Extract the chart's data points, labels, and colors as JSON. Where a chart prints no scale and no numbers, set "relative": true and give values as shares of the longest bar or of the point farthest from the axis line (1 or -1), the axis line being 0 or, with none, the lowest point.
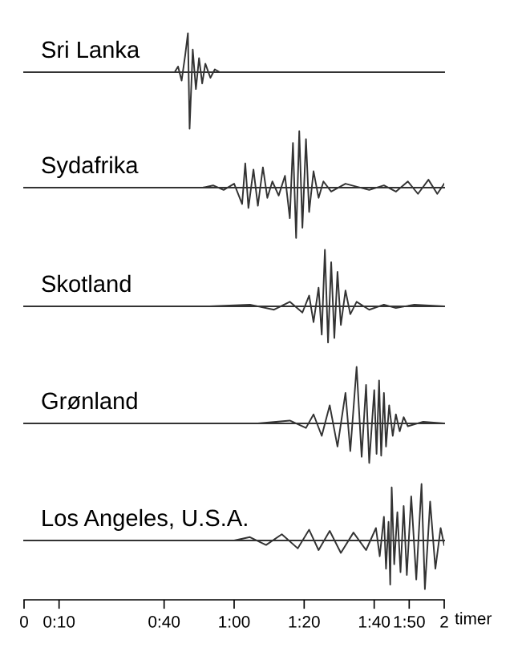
{
  "chart_data": [
    {
      "type": "line",
      "title": "Sri Lanka",
      "relative": true,
      "color": "#333333",
      "xlim": [
        0,
        2
      ],
      "tick_labels": false,
      "x": [
        0,
        0.717,
        0.733,
        0.75,
        0.767,
        0.78,
        0.788,
        0.803,
        0.818,
        0.833,
        0.848,
        0.863,
        0.887,
        0.908,
        0.932,
        2
      ],
      "values": [
        0,
        0,
        0.1,
        -0.15,
        0.3,
        0.69,
        -1,
        0.4,
        -0.3,
        0.25,
        -0.2,
        0.15,
        -0.1,
        0.05,
        0,
        0
      ]
    },
    {
      "type": "line",
      "title": "Sydafrika",
      "relative": true,
      "color": "#333333",
      "xlim": [
        0,
        2
      ],
      "tick_labels": false,
      "x": [
        0,
        0.85,
        0.9,
        0.95,
        1,
        1.038,
        1.053,
        1.068,
        1.092,
        1.113,
        1.137,
        1.158,
        1.182,
        1.212,
        1.242,
        1.265,
        1.28,
        1.295,
        1.31,
        1.325,
        1.342,
        1.357,
        1.378,
        1.402,
        1.425,
        1.462,
        1.53,
        1.643,
        1.713,
        1.77,
        1.827,
        1.875,
        1.925,
        1.967,
        2
      ],
      "values": [
        0,
        0,
        0.04,
        -0.04,
        0.07,
        -0.29,
        0.43,
        -0.36,
        0.32,
        -0.32,
        0.36,
        -0.18,
        0.11,
        -0.14,
        0.21,
        -0.54,
        0.79,
        -0.89,
        1,
        -0.71,
        0.86,
        -0.43,
        0.29,
        -0.18,
        0.11,
        -0.07,
        0.07,
        -0.04,
        0.04,
        -0.07,
        0.11,
        -0.11,
        0.14,
        -0.11,
        0.07
      ]
    },
    {
      "type": "line",
      "title": "Skotland",
      "relative": true,
      "color": "#333333",
      "xlim": [
        0,
        2
      ],
      "tick_labels": false,
      "x": [
        0,
        0.883,
        1.075,
        1.19,
        1.265,
        1.325,
        1.357,
        1.378,
        1.402,
        1.417,
        1.432,
        1.447,
        1.462,
        1.477,
        1.492,
        1.508,
        1.53,
        1.553,
        1.583,
        1.643,
        1.713,
        1.77,
        1.858,
        2
      ],
      "values": [
        0,
        0,
        0.03,
        -0.06,
        0.08,
        -0.11,
        0.19,
        -0.28,
        0.33,
        -0.5,
        1,
        -0.64,
        0.78,
        -0.56,
        0.61,
        -0.33,
        0.28,
        -0.14,
        0.08,
        -0.06,
        0.03,
        -0.03,
        0.03,
        0
      ]
    },
    {
      "type": "line",
      "title": "Grønland",
      "relative": true,
      "color": "#333333",
      "xlim": [
        0,
        2
      ],
      "tick_labels": false,
      "x": [
        0,
        1.113,
        1.265,
        1.342,
        1.378,
        1.417,
        1.455,
        1.492,
        1.53,
        1.553,
        1.583,
        1.607,
        1.628,
        1.643,
        1.667,
        1.678,
        1.69,
        1.7,
        1.713,
        1.723,
        1.738,
        1.755,
        1.77,
        1.788,
        1.807,
        1.827,
        1.9,
        2
      ],
      "values": [
        0,
        0,
        0.05,
        -0.08,
        0.16,
        -0.22,
        0.32,
        -0.41,
        0.54,
        -0.49,
        1,
        -0.59,
        0.68,
        -0.7,
        0.59,
        -0.54,
        0.76,
        -0.57,
        0.54,
        -0.41,
        0.32,
        -0.22,
        0.16,
        -0.14,
        0.11,
        -0.05,
        0.03,
        0
      ]
    },
    {
      "type": "line",
      "title": "Los Angeles, U.S.A.",
      "relative": true,
      "color": "#333333",
      "xlim": [
        0,
        2
      ],
      "tick_labels": "x",
      "xlabel": "timer",
      "xticks": [
        0,
        {
          "value": 0.1667,
          "label": "0:10"
        },
        {
          "value": 0.6667,
          "label": "0:40"
        },
        {
          "value": 1,
          "label": "1:00"
        },
        {
          "value": 1.3333,
          "label": "1:20"
        },
        {
          "value": 1.6667,
          "label": "1:40"
        },
        {
          "value": 1.8333,
          "label": "1:50"
        },
        2
      ],
      "x": [
        0,
        1,
        1.075,
        1.152,
        1.227,
        1.303,
        1.357,
        1.402,
        1.455,
        1.508,
        1.568,
        1.628,
        1.675,
        1.693,
        1.713,
        1.723,
        1.735,
        1.743,
        1.75,
        1.762,
        1.777,
        1.792,
        1.807,
        1.822,
        1.843,
        1.867,
        1.892,
        1.908,
        1.933,
        1.958,
        1.983,
        2
      ],
      "values": [
        0,
        0,
        0.06,
        -0.08,
        0.11,
        -0.14,
        0.19,
        -0.17,
        0.17,
        -0.22,
        0.14,
        -0.17,
        0.22,
        -0.28,
        0.42,
        -0.5,
        0.33,
        -0.78,
        0.94,
        -0.42,
        0.5,
        -0.56,
        0.61,
        -0.61,
        0.78,
        -0.69,
        1,
        -0.86,
        0.69,
        -0.5,
        0.22,
        -0.08
      ]
    }
  ]
}
